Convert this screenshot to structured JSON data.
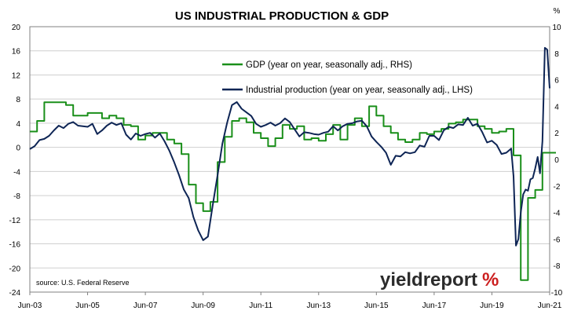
{
  "chart_data": {
    "type": "line",
    "title": "US INDUSTRIAL PRODUCTION & GDP",
    "source": "source: U.S. Federal Reserve",
    "watermark": "yieldreport",
    "watermark_symbol": "%",
    "right_axis_unit": "%",
    "colors": {
      "gdp": "#1a8f1a",
      "ip": "#0e2555",
      "grid": "#cfcfcf",
      "axis": "#808080",
      "watermark_red": "#cc1f1f",
      "watermark_text": "#2b2b2b"
    },
    "x_range": [
      "2003-06",
      "2021-06"
    ],
    "x_tick_labels": [
      "Jun-03",
      "Jun-05",
      "Jun-07",
      "Jun-09",
      "Jun-11",
      "Jun-13",
      "Jun-15",
      "Jun-17",
      "Jun-19",
      "Jun-21"
    ],
    "y_left": {
      "min": -24,
      "max": 20,
      "ticks": [
        20,
        16,
        12,
        8,
        4,
        0,
        -4,
        -8,
        -12,
        -16,
        -20,
        -24
      ]
    },
    "y_right": {
      "min": -10,
      "max": 10,
      "ticks": [
        10,
        8,
        6,
        4,
        2,
        0,
        -2,
        -4,
        -6,
        -8,
        -10
      ]
    },
    "grid": "horizontal",
    "legend_position": "top-center",
    "series": [
      {
        "name": "GDP (year on year, seasonally adj., RHS)",
        "key": "gdp",
        "axis": "right",
        "step": true,
        "points": [
          [
            "2003-06",
            2.1
          ],
          [
            "2003-09",
            2.9
          ],
          [
            "2003-12",
            4.3
          ],
          [
            "2004-03",
            4.3
          ],
          [
            "2004-06",
            4.3
          ],
          [
            "2004-09",
            4.1
          ],
          [
            "2004-12",
            3.3
          ],
          [
            "2005-03",
            3.3
          ],
          [
            "2005-06",
            3.5
          ],
          [
            "2005-09",
            3.5
          ],
          [
            "2005-12",
            3.1
          ],
          [
            "2006-03",
            3.3
          ],
          [
            "2006-06",
            3.1
          ],
          [
            "2006-09",
            2.6
          ],
          [
            "2006-12",
            2.5
          ],
          [
            "2007-03",
            1.5
          ],
          [
            "2007-06",
            1.8
          ],
          [
            "2007-09",
            2.0
          ],
          [
            "2007-12",
            2.0
          ],
          [
            "2008-03",
            1.5
          ],
          [
            "2008-06",
            1.2
          ],
          [
            "2008-09",
            0.4
          ],
          [
            "2008-12",
            -1.9
          ],
          [
            "2009-03",
            -3.3
          ],
          [
            "2009-06",
            -3.9
          ],
          [
            "2009-09",
            -3.2
          ],
          [
            "2009-12",
            -0.2
          ],
          [
            "2010-03",
            1.7
          ],
          [
            "2010-06",
            2.9
          ],
          [
            "2010-09",
            3.1
          ],
          [
            "2010-12",
            2.8
          ],
          [
            "2011-03",
            2.0
          ],
          [
            "2011-06",
            1.6
          ],
          [
            "2011-09",
            1.0
          ],
          [
            "2011-12",
            1.6
          ],
          [
            "2012-03",
            2.6
          ],
          [
            "2012-06",
            2.3
          ],
          [
            "2012-09",
            2.5
          ],
          [
            "2012-12",
            1.5
          ],
          [
            "2013-03",
            1.6
          ],
          [
            "2013-06",
            1.4
          ],
          [
            "2013-09",
            1.9
          ],
          [
            "2013-12",
            2.6
          ],
          [
            "2014-03",
            1.5
          ],
          [
            "2014-06",
            2.6
          ],
          [
            "2014-09",
            3.1
          ],
          [
            "2014-12",
            2.5
          ],
          [
            "2015-03",
            4.0
          ],
          [
            "2015-06",
            3.3
          ],
          [
            "2015-09",
            2.5
          ],
          [
            "2015-12",
            2.0
          ],
          [
            "2016-03",
            1.5
          ],
          [
            "2016-06",
            1.3
          ],
          [
            "2016-09",
            1.5
          ],
          [
            "2016-12",
            2.0
          ],
          [
            "2017-03",
            1.9
          ],
          [
            "2017-06",
            2.1
          ],
          [
            "2017-09",
            2.3
          ],
          [
            "2017-12",
            2.7
          ],
          [
            "2018-03",
            2.8
          ],
          [
            "2018-06",
            3.0
          ],
          [
            "2018-09",
            3.0
          ],
          [
            "2018-12",
            2.5
          ],
          [
            "2019-03",
            2.3
          ],
          [
            "2019-06",
            2.0
          ],
          [
            "2019-09",
            2.1
          ],
          [
            "2019-12",
            2.3
          ],
          [
            "2020-03",
            0.3
          ],
          [
            "2020-06",
            -9.1
          ],
          [
            "2020-09",
            -2.9
          ],
          [
            "2020-12",
            -2.3
          ],
          [
            "2021-03",
            0.5
          ],
          [
            "2021-06",
            0.5
          ]
        ]
      },
      {
        "name": "Industrial production (year on year, seasonally adj., LHS)",
        "key": "ip",
        "axis": "left",
        "step": false,
        "points": [
          [
            "2003-06",
            -0.3
          ],
          [
            "2003-08",
            0.2
          ],
          [
            "2003-10",
            1.2
          ],
          [
            "2003-12",
            1.4
          ],
          [
            "2004-02",
            1.9
          ],
          [
            "2004-04",
            2.8
          ],
          [
            "2004-06",
            3.6
          ],
          [
            "2004-08",
            3.2
          ],
          [
            "2004-10",
            3.9
          ],
          [
            "2004-12",
            4.2
          ],
          [
            "2005-02",
            3.6
          ],
          [
            "2005-04",
            3.5
          ],
          [
            "2005-06",
            3.4
          ],
          [
            "2005-08",
            3.9
          ],
          [
            "2005-10",
            2.2
          ],
          [
            "2005-12",
            2.8
          ],
          [
            "2006-02",
            3.6
          ],
          [
            "2006-04",
            4.1
          ],
          [
            "2006-06",
            3.7
          ],
          [
            "2006-08",
            4.0
          ],
          [
            "2006-10",
            2.1
          ],
          [
            "2006-12",
            1.3
          ],
          [
            "2007-02",
            2.3
          ],
          [
            "2007-04",
            1.9
          ],
          [
            "2007-06",
            2.2
          ],
          [
            "2007-08",
            2.4
          ],
          [
            "2007-10",
            1.6
          ],
          [
            "2007-12",
            2.3
          ],
          [
            "2008-02",
            1.0
          ],
          [
            "2008-04",
            -0.6
          ],
          [
            "2008-06",
            -2.5
          ],
          [
            "2008-08",
            -4.6
          ],
          [
            "2008-10",
            -7.0
          ],
          [
            "2008-12",
            -8.4
          ],
          [
            "2009-02",
            -11.6
          ],
          [
            "2009-04",
            -13.8
          ],
          [
            "2009-06",
            -15.4
          ],
          [
            "2009-08",
            -14.8
          ],
          [
            "2009-10",
            -9.6
          ],
          [
            "2009-12",
            -4.6
          ],
          [
            "2010-02",
            0.6
          ],
          [
            "2010-04",
            4.1
          ],
          [
            "2010-06",
            7.0
          ],
          [
            "2010-08",
            7.5
          ],
          [
            "2010-10",
            6.4
          ],
          [
            "2010-12",
            5.8
          ],
          [
            "2011-02",
            5.2
          ],
          [
            "2011-04",
            3.9
          ],
          [
            "2011-06",
            3.4
          ],
          [
            "2011-08",
            3.7
          ],
          [
            "2011-10",
            4.1
          ],
          [
            "2011-12",
            3.6
          ],
          [
            "2012-02",
            4.0
          ],
          [
            "2012-04",
            4.8
          ],
          [
            "2012-06",
            4.2
          ],
          [
            "2012-08",
            3.0
          ],
          [
            "2012-10",
            1.8
          ],
          [
            "2012-12",
            2.5
          ],
          [
            "2013-02",
            2.4
          ],
          [
            "2013-04",
            2.2
          ],
          [
            "2013-06",
            2.1
          ],
          [
            "2013-08",
            2.4
          ],
          [
            "2013-10",
            2.6
          ],
          [
            "2013-12",
            3.5
          ],
          [
            "2014-02",
            2.8
          ],
          [
            "2014-04",
            3.5
          ],
          [
            "2014-06",
            3.9
          ],
          [
            "2014-08",
            4.0
          ],
          [
            "2014-10",
            4.3
          ],
          [
            "2014-12",
            4.4
          ],
          [
            "2015-02",
            3.5
          ],
          [
            "2015-04",
            1.8
          ],
          [
            "2015-06",
            0.9
          ],
          [
            "2015-08",
            0.1
          ],
          [
            "2015-10",
            -0.9
          ],
          [
            "2015-12",
            -2.9
          ],
          [
            "2016-02",
            -1.4
          ],
          [
            "2016-04",
            -1.5
          ],
          [
            "2016-06",
            -0.8
          ],
          [
            "2016-08",
            -1.0
          ],
          [
            "2016-10",
            -0.8
          ],
          [
            "2016-12",
            0.3
          ],
          [
            "2017-02",
            0.1
          ],
          [
            "2017-04",
            1.9
          ],
          [
            "2017-06",
            1.9
          ],
          [
            "2017-08",
            1.2
          ],
          [
            "2017-10",
            2.8
          ],
          [
            "2017-12",
            3.4
          ],
          [
            "2018-02",
            3.2
          ],
          [
            "2018-04",
            3.8
          ],
          [
            "2018-06",
            3.7
          ],
          [
            "2018-08",
            4.9
          ],
          [
            "2018-10",
            3.6
          ],
          [
            "2018-12",
            3.9
          ],
          [
            "2019-02",
            2.5
          ],
          [
            "2019-04",
            0.8
          ],
          [
            "2019-06",
            1.1
          ],
          [
            "2019-08",
            0.4
          ],
          [
            "2019-10",
            -1.1
          ],
          [
            "2019-12",
            -0.9
          ],
          [
            "2020-02",
            -0.2
          ],
          [
            "2020-03",
            -4.8
          ],
          [
            "2020-04",
            -16.3
          ],
          [
            "2020-05",
            -15.2
          ],
          [
            "2020-06",
            -10.8
          ],
          [
            "2020-07",
            -7.8
          ],
          [
            "2020-08",
            -7.0
          ],
          [
            "2020-09",
            -7.2
          ],
          [
            "2020-10",
            -5.3
          ],
          [
            "2020-11",
            -5.1
          ],
          [
            "2020-12",
            -3.5
          ],
          [
            "2021-01",
            -1.6
          ],
          [
            "2021-02",
            -4.3
          ],
          [
            "2021-03",
            1.0
          ],
          [
            "2021-04",
            16.5
          ],
          [
            "2021-05",
            16.2
          ],
          [
            "2021-06",
            9.8
          ]
        ]
      }
    ]
  }
}
